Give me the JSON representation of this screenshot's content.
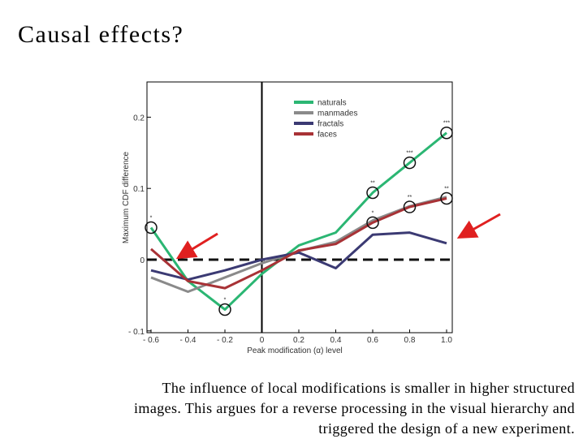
{
  "slide": {
    "title": "Causal effects?",
    "caption_lines": [
      "The influence of local modifications is smaller in higher structured",
      "images. This argues for a reverse processing in the visual hierarchy and",
      "triggered the design of a new experiment."
    ]
  },
  "chart_data": {
    "type": "line",
    "xlabel": "Peak modification (α) level",
    "ylabel": "Maximum CDF difference",
    "xlim": [
      -0.6,
      1.0
    ],
    "ylim": [
      -0.1,
      0.25
    ],
    "x_ticks": [
      -0.6,
      -0.4,
      -0.2,
      0,
      0.2,
      0.4,
      0.6,
      0.8,
      1.0
    ],
    "x_tick_labels": [
      "- 0.6",
      "- 0.4",
      "- 0.2",
      "0",
      "0.2",
      "0.4",
      "0.6",
      "0.8",
      "1.0"
    ],
    "y_ticks": [
      -0.1,
      0,
      0.1,
      0.2
    ],
    "y_tick_labels": [
      "- 0.1",
      "0",
      "0.1",
      "0.2"
    ],
    "legend_position": "top-center",
    "x": [
      -0.6,
      -0.4,
      -0.2,
      0,
      0.2,
      0.4,
      0.6,
      0.8,
      1.0
    ],
    "series": [
      {
        "name": "naturals",
        "color": "#2bb673",
        "values": [
          0.045,
          -0.03,
          -0.07,
          -0.02,
          0.02,
          0.038,
          0.094,
          0.136,
          0.178
        ]
      },
      {
        "name": "manmades",
        "color": "#8a8a8a",
        "values": [
          -0.025,
          -0.045,
          -0.025,
          -0.005,
          0.012,
          0.025,
          0.055,
          0.075,
          0.088
        ]
      },
      {
        "name": "fractals",
        "color": "#3b3a73",
        "values": [
          -0.015,
          -0.028,
          -0.015,
          0.0,
          0.01,
          -0.012,
          0.035,
          0.038,
          0.023
        ]
      },
      {
        "name": "faces",
        "color": "#a83236",
        "values": [
          0.015,
          -0.03,
          -0.04,
          -0.015,
          0.013,
          0.022,
          0.052,
          0.074,
          0.086
        ]
      }
    ],
    "reference_line": {
      "y": 0,
      "style": "dashed"
    },
    "zero_line_x": 0,
    "significance_markers": [
      {
        "x": -0.6,
        "y": 0.045,
        "stars": "*"
      },
      {
        "x": -0.2,
        "y": -0.07,
        "stars": "*"
      },
      {
        "x": 0.6,
        "y": 0.094,
        "stars": "**"
      },
      {
        "x": 0.8,
        "y": 0.136,
        "stars": "***"
      },
      {
        "x": 1.0,
        "y": 0.178,
        "stars": "***"
      },
      {
        "x": 0.6,
        "y": 0.052,
        "stars": "*"
      },
      {
        "x": 0.8,
        "y": 0.074,
        "stars": "**"
      },
      {
        "x": 1.0,
        "y": 0.086,
        "stars": "**"
      }
    ],
    "annotations": [
      {
        "type": "arrow",
        "color": "#e02020",
        "target": "dashed-line-left"
      },
      {
        "type": "arrow",
        "color": "#e02020",
        "target": "curves-right"
      }
    ]
  }
}
